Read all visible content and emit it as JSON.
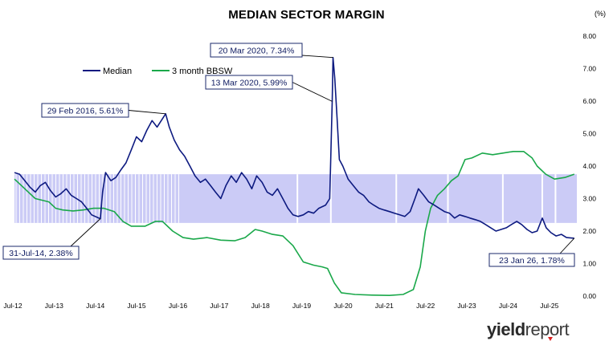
{
  "chart_data": {
    "type": "line",
    "title": "MEDIAN SECTOR MARGIN",
    "unit_label": "(%)",
    "ylim": [
      0,
      8
    ],
    "y_ticks": [
      "0.00",
      "1.00",
      "2.00",
      "3.00",
      "4.00",
      "5.00",
      "6.00",
      "7.00",
      "8.00"
    ],
    "x_ticks": [
      "Jul-12",
      "Jul-13",
      "Jul-14",
      "Jul-15",
      "Jul-16",
      "Jul-17",
      "Jul-18",
      "Jul-19",
      "Jul-20",
      "Jul-21",
      "Jul-22",
      "Jul-23",
      "Jul-24",
      "Jul-25"
    ],
    "xlim": [
      "2012-07-01",
      "2026-02-15"
    ],
    "grid": false,
    "legend": "top-left",
    "shaded_band": {
      "from": 2.25,
      "to": 3.75,
      "color": "#c8c8f5"
    },
    "series": [
      {
        "name": "Median",
        "color": "#0d1a80",
        "points": [
          [
            "2012-07-01",
            3.8
          ],
          [
            "2012-08-15",
            3.75
          ],
          [
            "2012-10-01",
            3.55
          ],
          [
            "2012-11-15",
            3.35
          ],
          [
            "2013-01-01",
            3.2
          ],
          [
            "2013-02-15",
            3.4
          ],
          [
            "2013-04-01",
            3.5
          ],
          [
            "2013-05-15",
            3.25
          ],
          [
            "2013-07-01",
            3.05
          ],
          [
            "2013-08-15",
            3.15
          ],
          [
            "2013-10-01",
            3.3
          ],
          [
            "2013-11-15",
            3.1
          ],
          [
            "2014-01-01",
            3.0
          ],
          [
            "2014-02-15",
            2.9
          ],
          [
            "2014-04-01",
            2.7
          ],
          [
            "2014-05-15",
            2.5
          ],
          [
            "2014-07-31",
            2.38
          ],
          [
            "2014-08-20",
            3.2
          ],
          [
            "2014-09-15",
            3.8
          ],
          [
            "2014-11-01",
            3.55
          ],
          [
            "2014-12-15",
            3.65
          ],
          [
            "2015-02-01",
            3.9
          ],
          [
            "2015-03-15",
            4.1
          ],
          [
            "2015-05-01",
            4.5
          ],
          [
            "2015-06-15",
            4.9
          ],
          [
            "2015-08-01",
            4.75
          ],
          [
            "2015-09-15",
            5.1
          ],
          [
            "2015-11-01",
            5.4
          ],
          [
            "2015-12-15",
            5.2
          ],
          [
            "2016-02-29",
            5.61
          ],
          [
            "2016-04-01",
            5.2
          ],
          [
            "2016-05-15",
            4.8
          ],
          [
            "2016-07-01",
            4.5
          ],
          [
            "2016-08-15",
            4.3
          ],
          [
            "2016-10-01",
            4.0
          ],
          [
            "2016-11-15",
            3.7
          ],
          [
            "2017-01-01",
            3.5
          ],
          [
            "2017-02-15",
            3.6
          ],
          [
            "2017-04-01",
            3.4
          ],
          [
            "2017-05-15",
            3.2
          ],
          [
            "2017-07-01",
            3.0
          ],
          [
            "2017-08-15",
            3.4
          ],
          [
            "2017-10-01",
            3.7
          ],
          [
            "2017-11-15",
            3.5
          ],
          [
            "2018-01-01",
            3.8
          ],
          [
            "2018-02-15",
            3.6
          ],
          [
            "2018-04-01",
            3.3
          ],
          [
            "2018-05-15",
            3.7
          ],
          [
            "2018-07-01",
            3.5
          ],
          [
            "2018-08-15",
            3.2
          ],
          [
            "2018-10-01",
            3.1
          ],
          [
            "2018-11-15",
            3.3
          ],
          [
            "2019-01-01",
            3.0
          ],
          [
            "2019-02-15",
            2.7
          ],
          [
            "2019-04-01",
            2.5
          ],
          [
            "2019-05-15",
            2.45
          ],
          [
            "2019-07-01",
            2.5
          ],
          [
            "2019-08-15",
            2.6
          ],
          [
            "2019-10-01",
            2.55
          ],
          [
            "2019-11-15",
            2.7
          ],
          [
            "2020-01-15",
            2.8
          ],
          [
            "2020-02-20",
            3.0
          ],
          [
            "2020-03-13",
            5.99
          ],
          [
            "2020-03-20",
            7.34
          ],
          [
            "2020-04-05",
            6.7
          ],
          [
            "2020-04-25",
            5.5
          ],
          [
            "2020-05-15",
            4.2
          ],
          [
            "2020-06-15",
            4.0
          ],
          [
            "2020-08-01",
            3.6
          ],
          [
            "2020-09-15",
            3.4
          ],
          [
            "2020-11-01",
            3.2
          ],
          [
            "2020-12-15",
            3.1
          ],
          [
            "2021-02-01",
            2.9
          ],
          [
            "2021-03-15",
            2.8
          ],
          [
            "2021-05-01",
            2.7
          ],
          [
            "2021-06-15",
            2.65
          ],
          [
            "2021-08-01",
            2.6
          ],
          [
            "2021-09-15",
            2.55
          ],
          [
            "2021-11-01",
            2.5
          ],
          [
            "2021-12-15",
            2.45
          ],
          [
            "2022-02-01",
            2.6
          ],
          [
            "2022-03-15",
            3.0
          ],
          [
            "2022-04-15",
            3.3
          ],
          [
            "2022-06-01",
            3.1
          ],
          [
            "2022-07-15",
            2.9
          ],
          [
            "2022-09-01",
            2.8
          ],
          [
            "2022-10-15",
            2.7
          ],
          [
            "2022-12-01",
            2.6
          ],
          [
            "2023-01-15",
            2.55
          ],
          [
            "2023-03-01",
            2.4
          ],
          [
            "2023-04-15",
            2.5
          ],
          [
            "2023-06-01",
            2.45
          ],
          [
            "2023-07-15",
            2.4
          ],
          [
            "2023-09-01",
            2.35
          ],
          [
            "2023-10-15",
            2.3
          ],
          [
            "2023-12-01",
            2.2
          ],
          [
            "2024-01-15",
            2.1
          ],
          [
            "2024-03-01",
            2.0
          ],
          [
            "2024-04-15",
            2.05
          ],
          [
            "2024-06-01",
            2.1
          ],
          [
            "2024-07-15",
            2.2
          ],
          [
            "2024-09-01",
            2.3
          ],
          [
            "2024-10-15",
            2.2
          ],
          [
            "2024-12-01",
            2.05
          ],
          [
            "2025-01-15",
            1.95
          ],
          [
            "2025-03-01",
            2.0
          ],
          [
            "2025-04-15",
            2.4
          ],
          [
            "2025-05-20",
            2.1
          ],
          [
            "2025-07-01",
            1.95
          ],
          [
            "2025-08-15",
            1.85
          ],
          [
            "2025-10-01",
            1.9
          ],
          [
            "2025-11-15",
            1.8
          ],
          [
            "2026-01-23",
            1.78
          ]
        ]
      },
      {
        "name": "3 month BBSW",
        "color": "#1aa84a",
        "points": [
          [
            "2012-07-01",
            3.6
          ],
          [
            "2012-09-01",
            3.4
          ],
          [
            "2012-11-01",
            3.2
          ],
          [
            "2013-01-01",
            3.0
          ],
          [
            "2013-03-01",
            2.95
          ],
          [
            "2013-05-01",
            2.9
          ],
          [
            "2013-07-01",
            2.7
          ],
          [
            "2013-09-01",
            2.65
          ],
          [
            "2013-12-01",
            2.62
          ],
          [
            "2014-03-01",
            2.65
          ],
          [
            "2014-06-01",
            2.7
          ],
          [
            "2014-09-01",
            2.7
          ],
          [
            "2014-12-01",
            2.6
          ],
          [
            "2015-02-15",
            2.3
          ],
          [
            "2015-05-01",
            2.15
          ],
          [
            "2015-07-01",
            2.15
          ],
          [
            "2015-09-01",
            2.15
          ],
          [
            "2015-12-01",
            2.3
          ],
          [
            "2016-02-01",
            2.3
          ],
          [
            "2016-05-01",
            2.0
          ],
          [
            "2016-08-01",
            1.8
          ],
          [
            "2016-11-01",
            1.75
          ],
          [
            "2017-03-01",
            1.8
          ],
          [
            "2017-07-01",
            1.72
          ],
          [
            "2017-11-01",
            1.7
          ],
          [
            "2018-02-01",
            1.8
          ],
          [
            "2018-05-01",
            2.05
          ],
          [
            "2018-07-01",
            2.0
          ],
          [
            "2018-10-01",
            1.9
          ],
          [
            "2019-01-01",
            1.85
          ],
          [
            "2019-04-01",
            1.55
          ],
          [
            "2019-07-01",
            1.05
          ],
          [
            "2019-10-01",
            0.95
          ],
          [
            "2019-12-15",
            0.9
          ],
          [
            "2020-02-01",
            0.85
          ],
          [
            "2020-04-01",
            0.4
          ],
          [
            "2020-06-01",
            0.1
          ],
          [
            "2020-10-01",
            0.05
          ],
          [
            "2021-03-01",
            0.03
          ],
          [
            "2021-08-01",
            0.02
          ],
          [
            "2021-12-01",
            0.05
          ],
          [
            "2022-03-01",
            0.2
          ],
          [
            "2022-05-01",
            0.9
          ],
          [
            "2022-06-15",
            2.0
          ],
          [
            "2022-08-01",
            2.7
          ],
          [
            "2022-10-01",
            3.1
          ],
          [
            "2022-12-01",
            3.3
          ],
          [
            "2023-02-01",
            3.55
          ],
          [
            "2023-04-01",
            3.7
          ],
          [
            "2023-06-01",
            4.2
          ],
          [
            "2023-08-01",
            4.25
          ],
          [
            "2023-11-01",
            4.4
          ],
          [
            "2024-02-01",
            4.35
          ],
          [
            "2024-05-01",
            4.4
          ],
          [
            "2024-08-01",
            4.45
          ],
          [
            "2024-11-01",
            4.45
          ],
          [
            "2025-01-15",
            4.25
          ],
          [
            "2025-03-01",
            4.0
          ],
          [
            "2025-05-15",
            3.75
          ],
          [
            "2025-08-01",
            3.6
          ],
          [
            "2025-11-01",
            3.65
          ],
          [
            "2026-01-23",
            3.75
          ]
        ]
      }
    ],
    "annotations": [
      {
        "text": "20 Mar 2020, 7.34%",
        "date": "2020-03-20",
        "value": 7.34
      },
      {
        "text": "13 Mar 2020, 5.99%",
        "date": "2020-03-13",
        "value": 5.99
      },
      {
        "text": "29 Feb 2016, 5.61%",
        "date": "2016-02-29",
        "value": 5.61
      },
      {
        "text": "31-Jul-14, 2.38%",
        "date": "2014-07-31",
        "value": 2.38
      },
      {
        "text": "23 Jan 26, 1.78%",
        "date": "2026-01-23",
        "value": 1.78
      }
    ]
  },
  "brand": {
    "part1": "yield",
    "part2": "report"
  }
}
